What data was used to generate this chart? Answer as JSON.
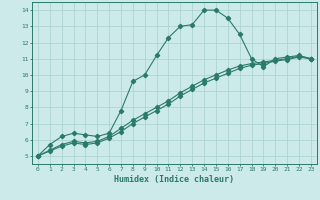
{
  "xlabel": "Humidex (Indice chaleur)",
  "ylabel": "",
  "xlim": [
    -0.5,
    23.5
  ],
  "ylim": [
    4.5,
    14.5
  ],
  "xticks": [
    0,
    1,
    2,
    3,
    4,
    5,
    6,
    7,
    8,
    9,
    10,
    11,
    12,
    13,
    14,
    15,
    16,
    17,
    18,
    19,
    20,
    21,
    22,
    23
  ],
  "yticks": [
    5,
    6,
    7,
    8,
    9,
    10,
    11,
    12,
    13,
    14
  ],
  "bg_color": "#cdeaea",
  "line_color": "#2a7a6a",
  "grid_color": "#a8d0d0",
  "curve_main_x": [
    0,
    1,
    2,
    3,
    4,
    5,
    6,
    7,
    8,
    9,
    10,
    11,
    12,
    13,
    14,
    15,
    16,
    17,
    18,
    19,
    20,
    21,
    22,
    23
  ],
  "curve_main_y": [
    5.0,
    5.7,
    6.2,
    6.4,
    6.3,
    6.2,
    6.4,
    7.8,
    9.6,
    10.0,
    11.2,
    12.3,
    13.0,
    13.1,
    14.0,
    14.0,
    13.5,
    12.5,
    11.0,
    10.5,
    11.0,
    11.1,
    11.2,
    11.0
  ],
  "curve_lo_x": [
    0,
    1,
    2,
    3,
    4,
    5,
    6,
    7,
    8,
    9,
    10,
    11,
    12,
    13,
    14,
    15,
    16,
    17,
    18,
    19,
    20,
    21,
    22,
    23
  ],
  "curve_lo_y": [
    5.0,
    5.3,
    5.6,
    5.8,
    5.7,
    5.8,
    6.1,
    6.5,
    7.0,
    7.4,
    7.8,
    8.2,
    8.7,
    9.1,
    9.5,
    9.8,
    10.1,
    10.4,
    10.6,
    10.7,
    10.85,
    10.95,
    11.1,
    11.0
  ],
  "curve_mid_x": [
    0,
    1,
    2,
    3,
    4,
    5,
    6,
    7,
    8,
    9,
    10,
    11,
    12,
    13,
    14,
    15,
    16,
    17,
    18,
    19,
    20,
    21,
    22,
    23
  ],
  "curve_mid_y": [
    5.0,
    5.35,
    5.7,
    5.9,
    5.8,
    5.9,
    6.2,
    6.7,
    7.2,
    7.6,
    8.0,
    8.4,
    8.9,
    9.3,
    9.7,
    10.0,
    10.3,
    10.55,
    10.7,
    10.8,
    10.9,
    11.0,
    11.15,
    11.0
  ]
}
